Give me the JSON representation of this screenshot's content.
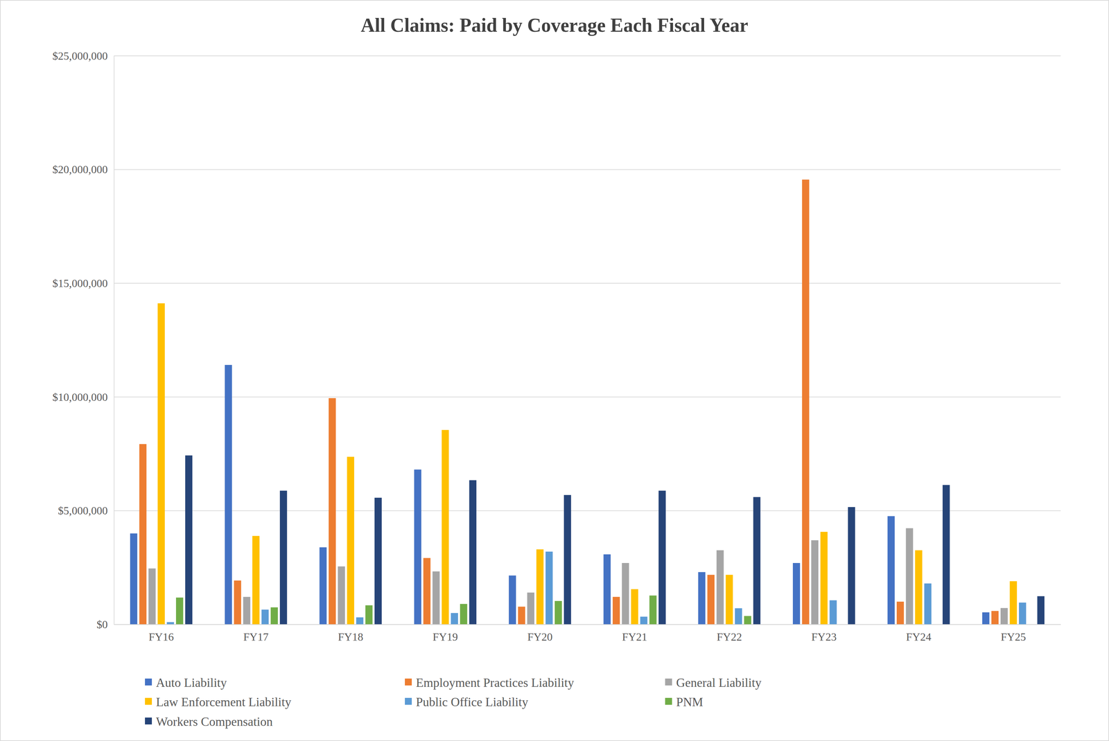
{
  "chart_data": {
    "type": "bar",
    "title": "All Claims: Paid by Coverage Each Fiscal Year",
    "categories": [
      "FY16",
      "FY17",
      "FY18",
      "FY19",
      "FY20",
      "FY21",
      "FY22",
      "FY23",
      "FY24",
      "FY25"
    ],
    "series": [
      {
        "name": "Auto Liability",
        "color": "#4472c4",
        "values": [
          4000000,
          11410000,
          3390000,
          6810000,
          2150000,
          3080000,
          2300000,
          2700000,
          4760000,
          530000
        ]
      },
      {
        "name": "Employment Practices Liability",
        "color": "#ed7d31",
        "values": [
          7930000,
          1930000,
          9950000,
          2920000,
          780000,
          1210000,
          2180000,
          19560000,
          1000000,
          590000
        ]
      },
      {
        "name": "General Liability",
        "color": "#a5a5a5",
        "values": [
          2460000,
          1210000,
          2550000,
          2330000,
          1400000,
          2700000,
          3260000,
          3700000,
          4230000,
          720000
        ]
      },
      {
        "name": "Law Enforcement Liability",
        "color": "#ffc000",
        "values": [
          14120000,
          3890000,
          7370000,
          8550000,
          3300000,
          1550000,
          2180000,
          4070000,
          3260000,
          1900000
        ]
      },
      {
        "name": "Public Office Liability",
        "color": "#5b9bd5",
        "values": [
          100000,
          650000,
          310000,
          500000,
          3200000,
          340000,
          710000,
          1060000,
          1800000,
          960000
        ]
      },
      {
        "name": "PNM",
        "color": "#70ad47",
        "values": [
          1180000,
          750000,
          840000,
          900000,
          1030000,
          1270000,
          370000,
          0,
          0,
          0
        ]
      },
      {
        "name": "Workers Compensation",
        "color": "#264478",
        "values": [
          7430000,
          5880000,
          5570000,
          6340000,
          5690000,
          5880000,
          5600000,
          5160000,
          6130000,
          1240000
        ]
      }
    ],
    "ylim": [
      0,
      25000000
    ],
    "yticks": [
      {
        "value": 0,
        "label": "$0"
      },
      {
        "value": 5000000,
        "label": "$5,000,000"
      },
      {
        "value": 10000000,
        "label": "$10,000,000"
      },
      {
        "value": 15000000,
        "label": "$15,000,000"
      },
      {
        "value": 20000000,
        "label": "$20,000,000"
      },
      {
        "value": 25000000,
        "label": "$25,000,000"
      }
    ],
    "grid": true,
    "legend": "bottom"
  }
}
